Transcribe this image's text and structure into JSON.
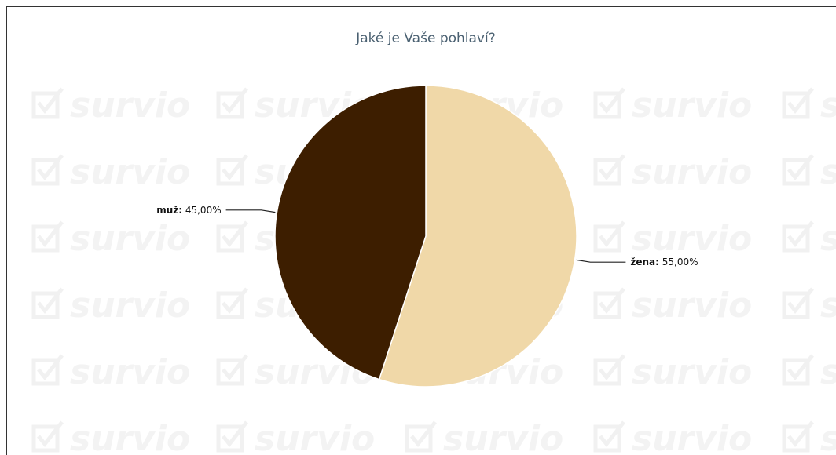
{
  "watermark": {
    "text": "survio",
    "icon": "check-square-icon"
  },
  "chart_data": {
    "type": "pie",
    "title": "Jaké je Vaše pohlaví?",
    "slices": [
      {
        "name": "žena",
        "value": 55.0,
        "label_value": "55,00%",
        "color": "#f0d8a8"
      },
      {
        "name": "muž",
        "value": 45.0,
        "label_value": "45,00%",
        "color": "#3d1e00"
      }
    ]
  }
}
